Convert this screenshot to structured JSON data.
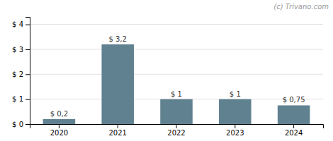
{
  "chart_data": {
    "type": "bar",
    "categories": [
      "2020",
      "2021",
      "2022",
      "2023",
      "2024"
    ],
    "values": [
      0.2,
      3.2,
      1.0,
      1.0,
      0.75
    ],
    "value_labels": [
      "$ 0,2",
      "$ 3,2",
      "$ 1",
      "$ 1",
      "$ 0,75"
    ],
    "data_labels": true,
    "color": "#5f8190",
    "ylim": [
      0,
      4.3
    ],
    "yticks": [
      {
        "value": 0,
        "label": "$ 0"
      },
      {
        "value": 1,
        "label": "$ 1"
      },
      {
        "value": 2,
        "label": "$ 2"
      },
      {
        "value": 3,
        "label": "$ 3"
      },
      {
        "value": 4,
        "label": "$ 4"
      }
    ],
    "grid": true,
    "annotations": [
      "(c) Trivano.com"
    ]
  }
}
